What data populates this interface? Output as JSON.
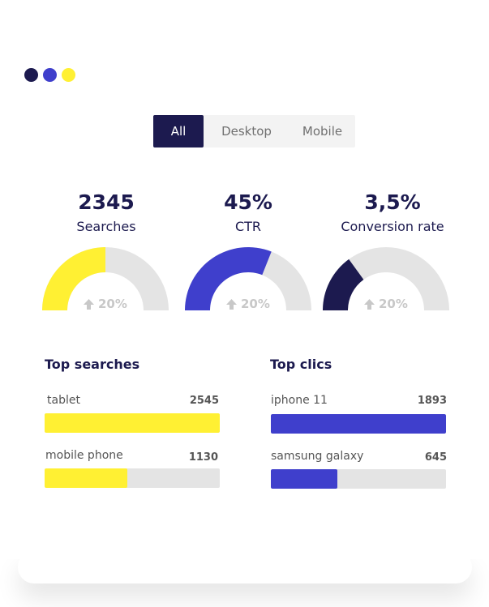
{
  "window_dots": {
    "colors": [
      "#1c1a4f",
      "#3f3fcc",
      "#fff033"
    ]
  },
  "tabs": [
    {
      "label": "All",
      "active": true
    },
    {
      "label": "Desktop",
      "active": false
    },
    {
      "label": "Mobile",
      "active": false
    }
  ],
  "metrics": [
    {
      "value": "2345",
      "label": "Searches",
      "gauge_fraction": 0.5,
      "gauge_color": "#fff033",
      "change": "20%"
    },
    {
      "value": "45%",
      "label": "CTR",
      "gauge_fraction": 0.62,
      "gauge_color": "#3f3fcc",
      "change": "20%"
    },
    {
      "value": "3,5%",
      "label": "Conversion rate",
      "gauge_fraction": 0.3,
      "gauge_color": "#1c1a4f",
      "change": "20%"
    }
  ],
  "top_searches": {
    "title": "Top searches",
    "color": "#fff033",
    "items": [
      {
        "label": "tablet",
        "value": "2545",
        "fraction": 1.0
      },
      {
        "label": "mobile phone",
        "value": "1130",
        "fraction": 0.47
      }
    ]
  },
  "top_clics": {
    "title": "Top clics",
    "color": "#3f3fcc",
    "items": [
      {
        "label": "iphone 11",
        "value": "1893",
        "fraction": 1.0
      },
      {
        "label": "samsung galaxy",
        "value": "645",
        "fraction": 0.38
      }
    ]
  },
  "colors": {
    "navy": "#1c1a4f",
    "blue": "#3f3fcc",
    "yellow": "#fff033",
    "track": "#e4e4e4"
  }
}
